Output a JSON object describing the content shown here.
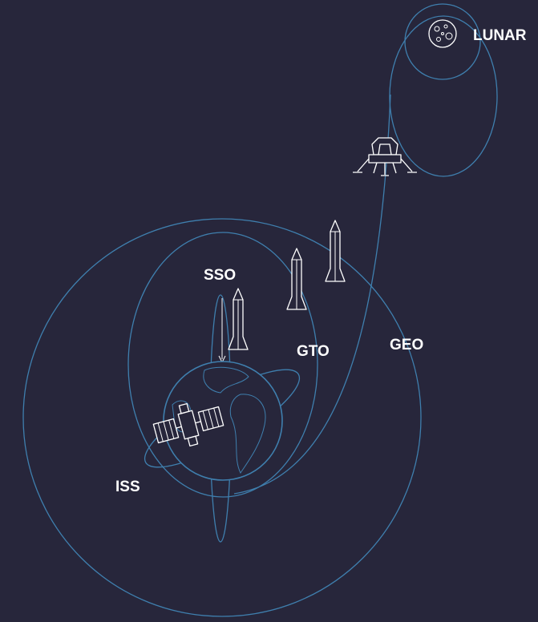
{
  "labels": {
    "lunar": "LUNAR",
    "sso": "SSO",
    "gto": "GTO",
    "geo": "GEO",
    "iss": "ISS"
  }
}
